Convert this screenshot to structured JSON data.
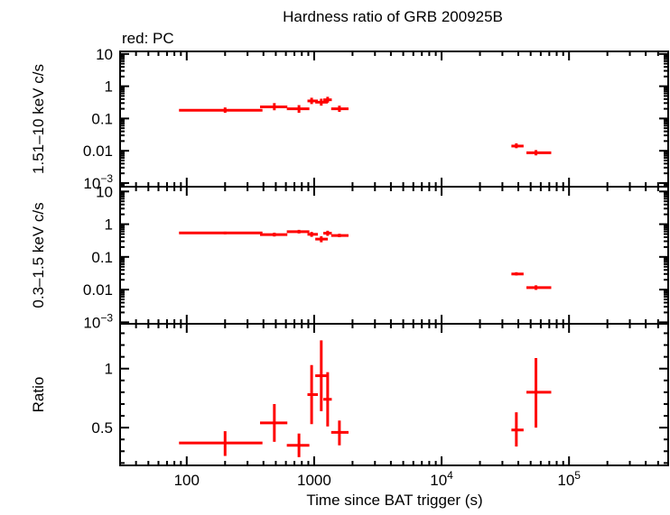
{
  "chart_data": {
    "type": "scatter",
    "title": "Hardness ratio of GRB 200925B",
    "legend_text": "red: PC",
    "legend_placement": "top-left",
    "series_color": "#ff0000",
    "xlabel": "Time since BAT trigger (s)",
    "xscale": "log",
    "xlim": [
      30,
      600000
    ],
    "xticks": [
      {
        "value": 100,
        "label": "100"
      },
      {
        "value": 1000,
        "label": "1000"
      },
      {
        "value": 10000,
        "label": "10",
        "exp": "4"
      },
      {
        "value": 100000,
        "label": "10",
        "exp": "5"
      }
    ],
    "grid": false,
    "panels": [
      {
        "ylabel": "1.51–10 keV c/s",
        "yscale": "log",
        "ylim": [
          0.00077,
          12
        ],
        "yticks": [
          {
            "value": 10,
            "label": "10"
          },
          {
            "value": 1,
            "label": "1"
          },
          {
            "value": 0.1,
            "label": "0.1"
          },
          {
            "value": 0.01,
            "label": "0.01"
          },
          {
            "value": 0.001,
            "label": "10",
            "exp": "−3"
          }
        ],
        "points": [
          {
            "x": 200,
            "xlo": 87,
            "xhi": 393,
            "y": 0.18,
            "ylo": 0.15,
            "yhi": 0.22
          },
          {
            "x": 487,
            "xlo": 376,
            "xhi": 616,
            "y": 0.23,
            "ylo": 0.18,
            "yhi": 0.3
          },
          {
            "x": 760,
            "xlo": 610,
            "xhi": 917,
            "y": 0.2,
            "ylo": 0.15,
            "yhi": 0.26
          },
          {
            "x": 955,
            "xlo": 886,
            "xhi": 1070,
            "y": 0.35,
            "ylo": 0.28,
            "yhi": 0.44
          },
          {
            "x": 1137,
            "xlo": 1020,
            "xhi": 1280,
            "y": 0.32,
            "ylo": 0.25,
            "yhi": 0.41
          },
          {
            "x": 1276,
            "xlo": 1180,
            "xhi": 1375,
            "y": 0.38,
            "ylo": 0.31,
            "yhi": 0.47
          },
          {
            "x": 1578,
            "xlo": 1360,
            "xhi": 1860,
            "y": 0.2,
            "ylo": 0.16,
            "yhi": 0.25
          },
          {
            "x": 38600,
            "xlo": 35300,
            "xhi": 44000,
            "y": 0.014,
            "ylo": 0.012,
            "yhi": 0.017
          },
          {
            "x": 55000,
            "xlo": 46300,
            "xhi": 72500,
            "y": 0.0087,
            "ylo": 0.0072,
            "yhi": 0.0105
          }
        ]
      },
      {
        "ylabel": "0.3–1.5 keV c/s",
        "yscale": "log",
        "ylim": [
          0.0009,
          14
        ],
        "yticks": [
          {
            "value": 10,
            "label": "10"
          },
          {
            "value": 1,
            "label": "1"
          },
          {
            "value": 0.1,
            "label": "0.1"
          },
          {
            "value": 0.01,
            "label": "0.01"
          },
          {
            "value": 0.001,
            "label": "10",
            "exp": "−3"
          }
        ],
        "points": [
          {
            "x": 200,
            "xlo": 87,
            "xhi": 393,
            "y": 0.54,
            "ylo": 0.49,
            "yhi": 0.59
          },
          {
            "x": 487,
            "xlo": 376,
            "xhi": 616,
            "y": 0.48,
            "ylo": 0.42,
            "yhi": 0.55
          },
          {
            "x": 760,
            "xlo": 610,
            "xhi": 917,
            "y": 0.59,
            "ylo": 0.52,
            "yhi": 0.67
          },
          {
            "x": 955,
            "xlo": 886,
            "xhi": 1070,
            "y": 0.49,
            "ylo": 0.41,
            "yhi": 0.58
          },
          {
            "x": 1137,
            "xlo": 1020,
            "xhi": 1280,
            "y": 0.35,
            "ylo": 0.28,
            "yhi": 0.43
          },
          {
            "x": 1276,
            "xlo": 1180,
            "xhi": 1375,
            "y": 0.53,
            "ylo": 0.44,
            "yhi": 0.63
          },
          {
            "x": 1578,
            "xlo": 1360,
            "xhi": 1860,
            "y": 0.45,
            "ylo": 0.4,
            "yhi": 0.51
          },
          {
            "x": 38600,
            "xlo": 35300,
            "xhi": 44000,
            "y": 0.03,
            "ylo": 0.027,
            "yhi": 0.034
          },
          {
            "x": 55000,
            "xlo": 46300,
            "xhi": 72500,
            "y": 0.0115,
            "ylo": 0.0098,
            "yhi": 0.0135
          }
        ]
      },
      {
        "ylabel": "Ratio",
        "yscale": "linear",
        "ylim": [
          0.18,
          1.38
        ],
        "yticks": [
          {
            "value": 0.5,
            "label": "0.5"
          },
          {
            "value": 1,
            "label": "1"
          }
        ],
        "yminor_step": 0.1,
        "points": [
          {
            "x": 200,
            "xlo": 87,
            "xhi": 393,
            "y": 0.37,
            "ylo": 0.26,
            "yhi": 0.47
          },
          {
            "x": 487,
            "xlo": 376,
            "xhi": 616,
            "y": 0.54,
            "ylo": 0.38,
            "yhi": 0.7
          },
          {
            "x": 760,
            "xlo": 610,
            "xhi": 917,
            "y": 0.35,
            "ylo": 0.25,
            "yhi": 0.45
          },
          {
            "x": 955,
            "xlo": 886,
            "xhi": 1070,
            "y": 0.78,
            "ylo": 0.53,
            "yhi": 1.03
          },
          {
            "x": 1137,
            "xlo": 1020,
            "xhi": 1280,
            "y": 0.94,
            "ylo": 0.64,
            "yhi": 1.24
          },
          {
            "x": 1276,
            "xlo": 1180,
            "xhi": 1375,
            "y": 0.74,
            "ylo": 0.51,
            "yhi": 0.97
          },
          {
            "x": 1578,
            "xlo": 1360,
            "xhi": 1860,
            "y": 0.46,
            "ylo": 0.35,
            "yhi": 0.56
          },
          {
            "x": 38600,
            "xlo": 35300,
            "xhi": 44000,
            "y": 0.48,
            "ylo": 0.34,
            "yhi": 0.63
          },
          {
            "x": 55000,
            "xlo": 46300,
            "xhi": 72500,
            "y": 0.8,
            "ylo": 0.5,
            "yhi": 1.09
          }
        ]
      }
    ]
  }
}
